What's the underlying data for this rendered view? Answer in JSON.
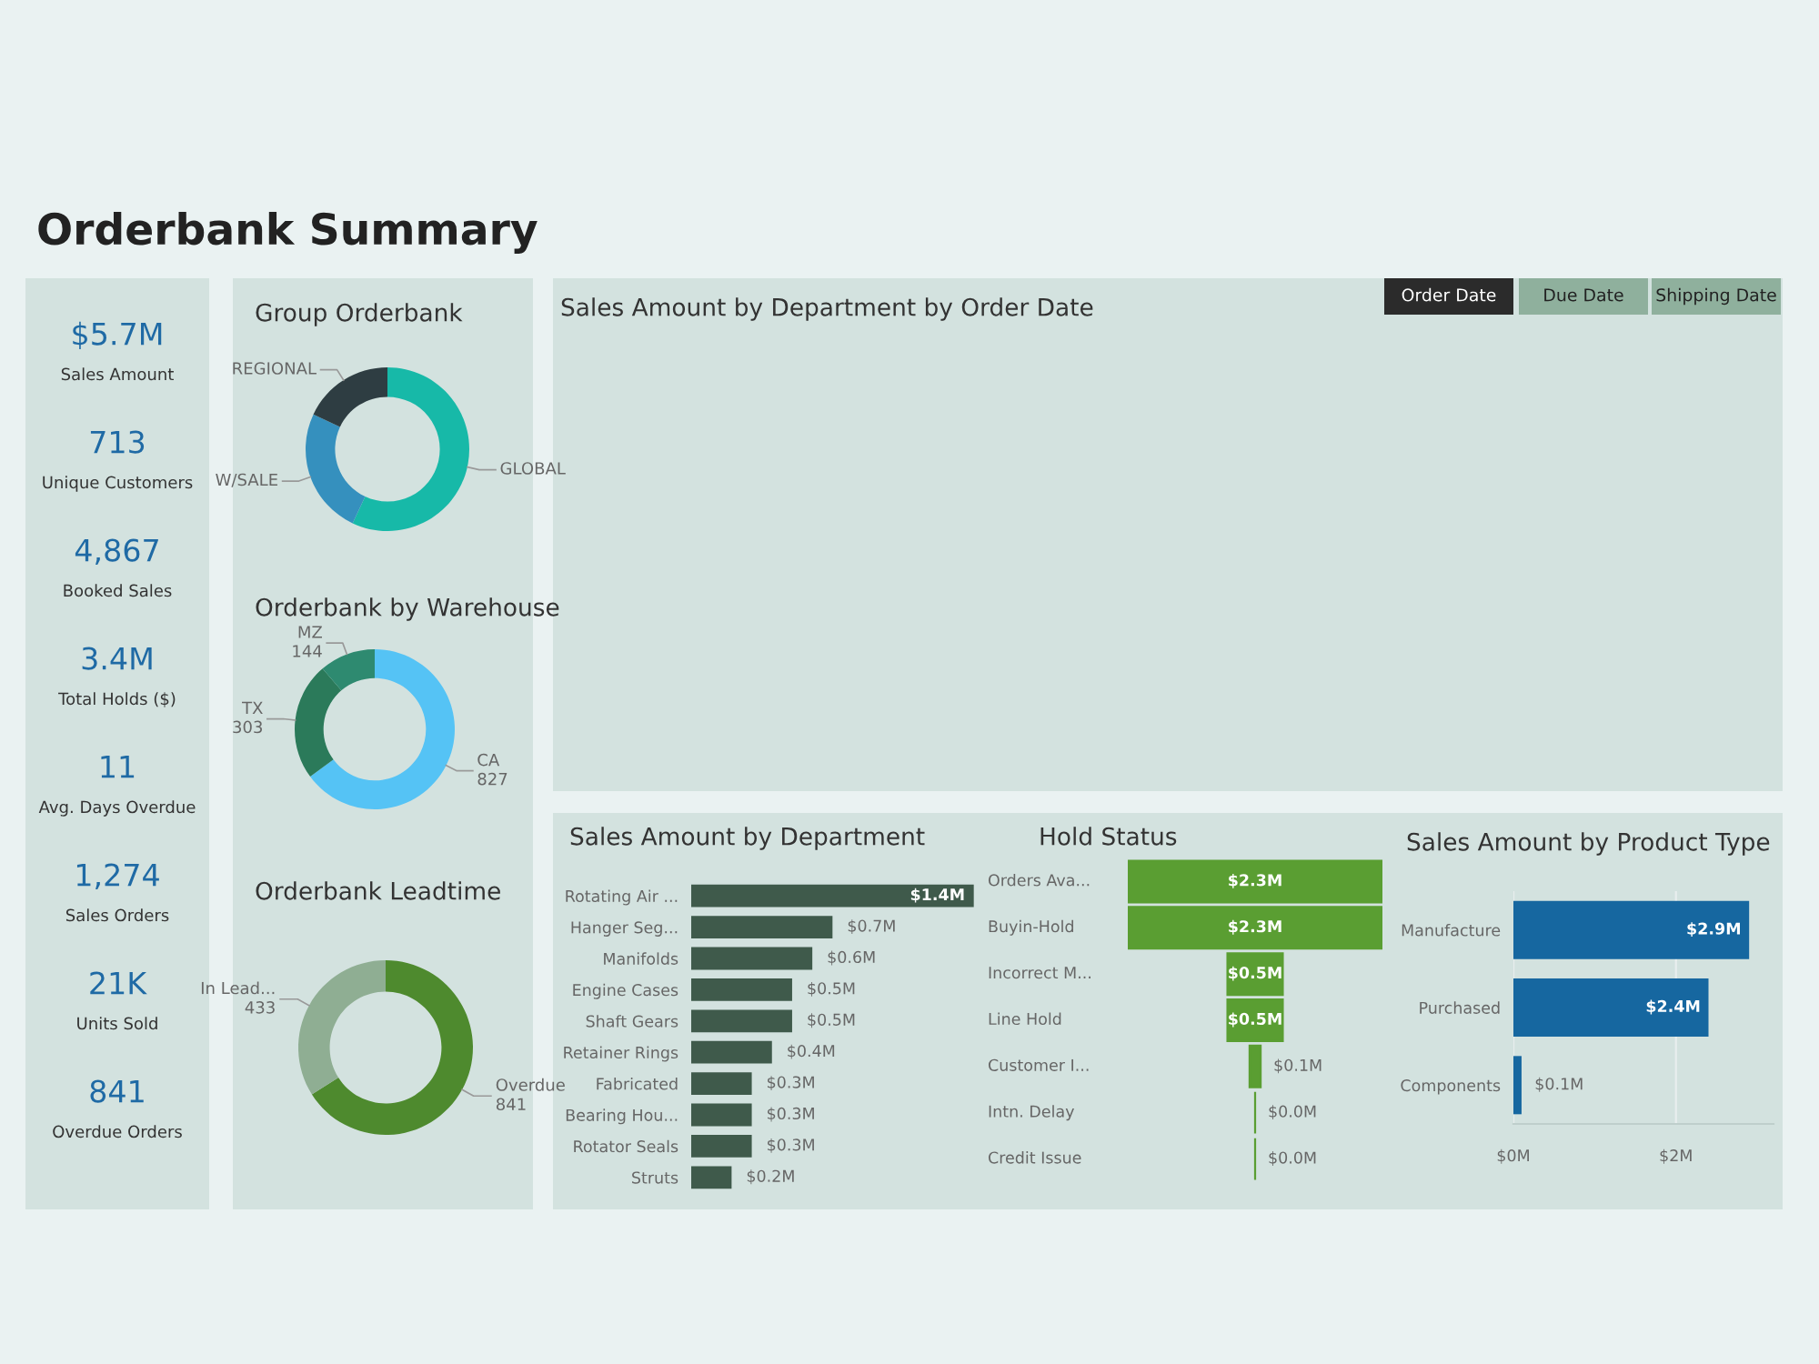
{
  "chart_data": [
    {
      "type": "other",
      "title": "Orderbank Summary",
      "annotations": [
        "$5.7M",
        "Sales Amount",
        "713",
        "Unique Customers",
        "4,867",
        "Booked Sales",
        "3.4M",
        "Total Holds ($)",
        "11",
        "Avg. Days Overdue",
        "1,274",
        "Sales Orders",
        "21K",
        "Units Sold",
        "841",
        "Overdue Orders"
      ]
    },
    {
      "type": "donut",
      "title": "Group Orderbank",
      "categories": [
        "GLOBAL",
        "W/SALE",
        "REGIONAL"
      ],
      "values": [
        57,
        25,
        18
      ],
      "colors": [
        "#17b9a8",
        "#3590be",
        "#2e3d42"
      ]
    },
    {
      "type": "donut",
      "title": "Orderbank by Warehouse",
      "categories": [
        "CA",
        "TX",
        "MZ"
      ],
      "values": [
        827,
        303,
        144
      ],
      "colors": [
        "#55c3f5",
        "#2b7a5a",
        "#2e8a70"
      ],
      "data_labels": true
    },
    {
      "type": "donut",
      "title": "Orderbank Leadtime",
      "categories": [
        "Overdue",
        "In Lead..."
      ],
      "values": [
        841,
        433
      ],
      "colors": [
        "#4e8a2e",
        "#8fae93"
      ],
      "data_labels": true
    },
    {
      "type": "other",
      "title": "Sales Amount by Department by Order Date",
      "annotations": [
        "Order Date",
        "Due Date",
        "Shipping Date"
      ]
    },
    {
      "type": "bar",
      "orientation": "horizontal",
      "title": "Sales Amount by Department",
      "categories": [
        "Rotating Air ...",
        "Hanger Seg...",
        "Manifolds",
        "Engine Cases",
        "Shaft Gears",
        "Retainer Rings",
        "Fabricated",
        "Bearing Hou...",
        "Rotator Seals",
        "Struts"
      ],
      "values": [
        1.4,
        0.7,
        0.6,
        0.5,
        0.5,
        0.4,
        0.3,
        0.3,
        0.3,
        0.2
      ],
      "value_labels": [
        "$1.4M",
        "$0.7M",
        "$0.6M",
        "$0.5M",
        "$0.5M",
        "$0.4M",
        "$0.3M",
        "$0.3M",
        "$0.3M",
        "$0.2M"
      ],
      "color": "#3f5a4b"
    },
    {
      "type": "other",
      "title": "Hold Status",
      "categories": [
        "Orders Ava...",
        "Buyin-Hold",
        "Incorrect M...",
        "Line Hold",
        "Customer I...",
        "Intn. Delay",
        "Credit Issue"
      ],
      "values": [
        2.3,
        2.3,
        0.5,
        0.5,
        0.1,
        0.0,
        0.0
      ],
      "value_labels": [
        "$2.3M",
        "$2.3M",
        "$0.5M",
        "$0.5M",
        "$0.1M",
        "$0.0M",
        "$0.0M"
      ],
      "color": "#5a9e32"
    },
    {
      "type": "bar",
      "orientation": "horizontal",
      "title": "Sales Amount by Product Type",
      "categories": [
        "Manufacture",
        "Purchased",
        "Components"
      ],
      "values": [
        2.9,
        2.4,
        0.1
      ],
      "value_labels": [
        "$2.9M",
        "$2.4M",
        "$0.1M"
      ],
      "color": "#1667a0",
      "xlim": [
        0,
        3.2
      ],
      "xticks": [
        {
          "value": 0,
          "label": "$0M"
        },
        {
          "value": 2,
          "label": "$2M"
        }
      ],
      "grid": "x"
    }
  ]
}
